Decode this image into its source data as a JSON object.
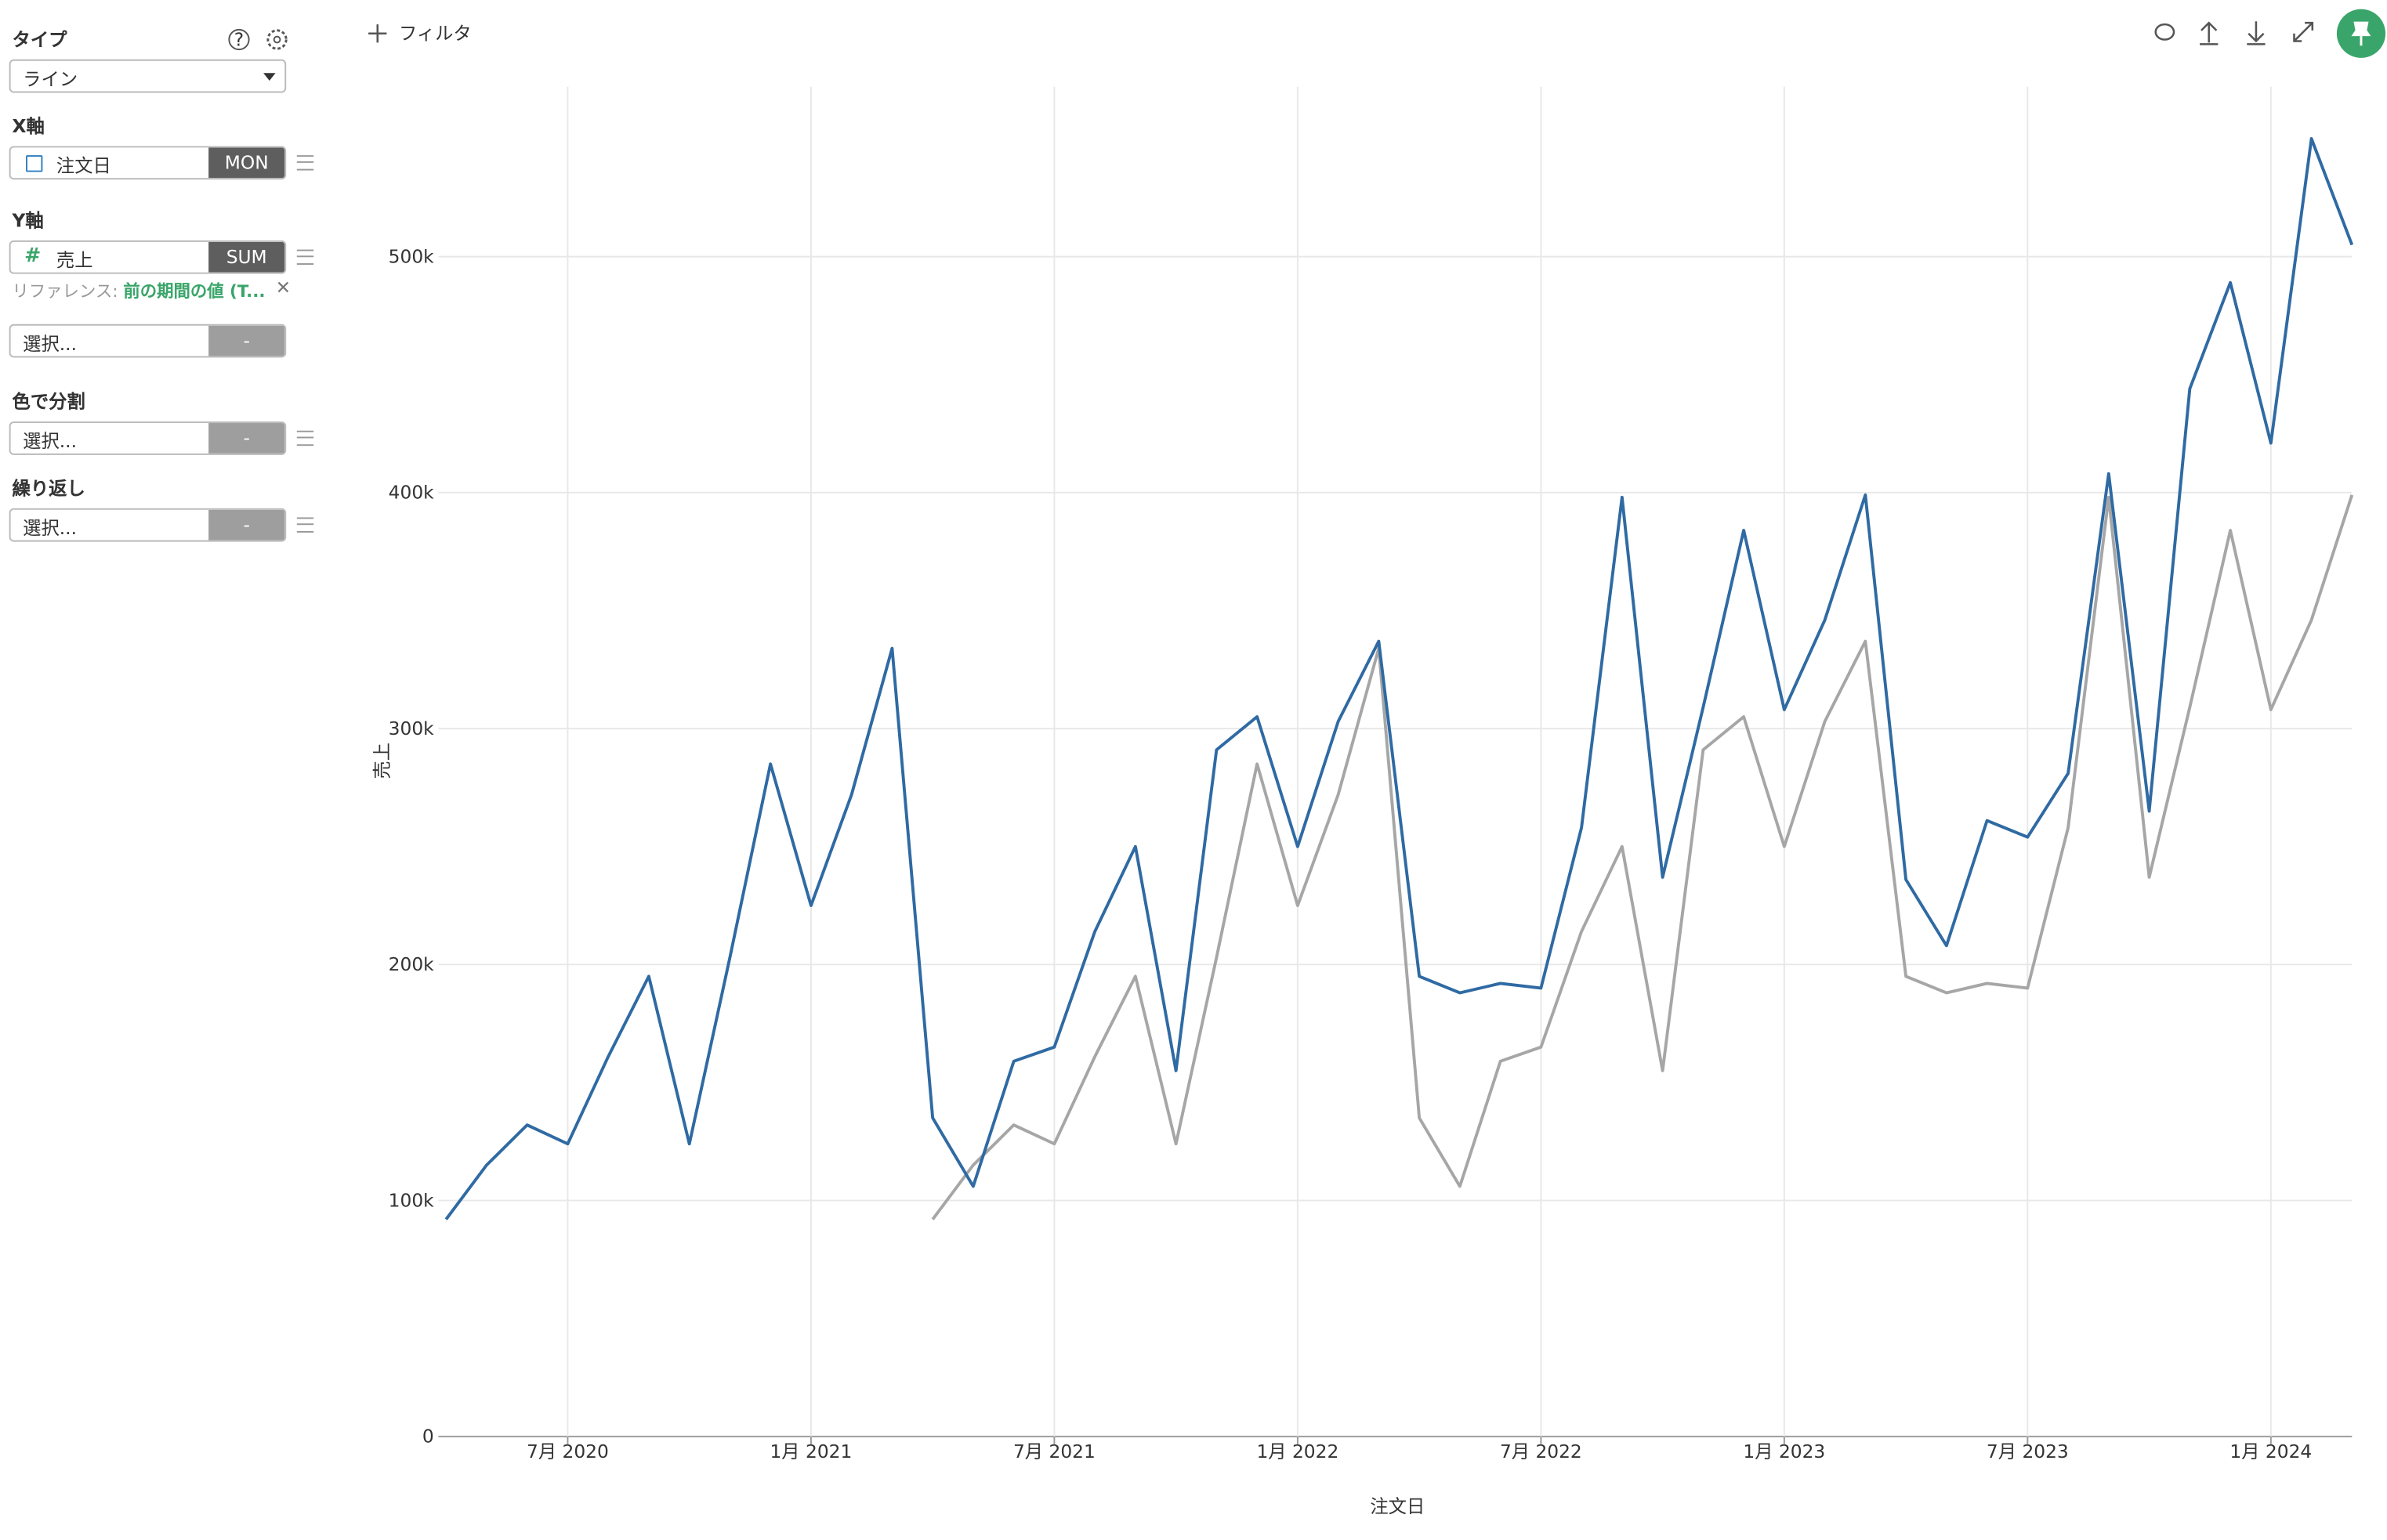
{
  "toolbar": {
    "filter": "フィルタ"
  },
  "sidebar": {
    "type_label": "タイプ",
    "type_value": "ライン",
    "x_label": "X軸",
    "x_field": "注文日",
    "x_agg": "MON",
    "y_label": "Y軸",
    "y_field": "売上",
    "y_agg": "SUM",
    "reference_prefix": "リファレンス:",
    "reference_value": "前の期間の値 (T...",
    "extra_select": "選択...",
    "extra_agg": "-",
    "color_label": "色で分割",
    "color_select": "選択...",
    "color_agg": "-",
    "repeat_label": "繰り返し",
    "repeat_select": "選択...",
    "repeat_agg": "-"
  },
  "chart_data": {
    "type": "line",
    "x_label": "注文日",
    "y_label": "売上",
    "x": [
      "2020-04",
      "2020-05",
      "2020-06",
      "2020-07",
      "2020-08",
      "2020-09",
      "2020-10",
      "2020-11",
      "2020-12",
      "2021-01",
      "2021-02",
      "2021-03",
      "2021-04",
      "2021-05",
      "2021-06",
      "2021-07",
      "2021-08",
      "2021-09",
      "2021-10",
      "2021-11",
      "2021-12",
      "2022-01",
      "2022-02",
      "2022-03",
      "2022-04",
      "2022-05",
      "2022-06",
      "2022-07",
      "2022-08",
      "2022-09",
      "2022-10",
      "2022-11",
      "2022-12",
      "2023-01",
      "2023-02",
      "2023-03",
      "2023-04",
      "2023-05",
      "2023-06",
      "2023-07",
      "2023-08",
      "2023-09",
      "2023-10",
      "2023-11",
      "2023-12",
      "2024-01",
      "2024-02",
      "2024-03"
    ],
    "series": [
      {
        "color": "#2f6aa3",
        "values": [
          92000,
          115000,
          132000,
          124000,
          161000,
          195000,
          124000,
          203000,
          285000,
          225000,
          272000,
          334000,
          135000,
          106000,
          159000,
          165000,
          214000,
          250000,
          155000,
          291000,
          305000,
          250000,
          303000,
          337000,
          195000,
          188000,
          192000,
          190000,
          258000,
          398000,
          237000,
          309000,
          384000,
          308000,
          346000,
          399000,
          236000,
          208000,
          261000,
          254000,
          281000,
          408000,
          265000,
          444000,
          489000,
          421000,
          550000,
          505000
        ]
      },
      {
        "color": "#a6a6a6",
        "values": [
          null,
          null,
          null,
          null,
          null,
          null,
          null,
          null,
          null,
          null,
          null,
          null,
          92000,
          115000,
          132000,
          124000,
          161000,
          195000,
          124000,
          203000,
          285000,
          225000,
          272000,
          334000,
          135000,
          106000,
          159000,
          165000,
          214000,
          250000,
          155000,
          291000,
          305000,
          250000,
          303000,
          337000,
          195000,
          188000,
          192000,
          190000,
          258000,
          398000,
          237000,
          309000,
          384000,
          308000,
          346000,
          399000
        ]
      }
    ],
    "xlim": [
      "2020-04",
      "2024-03"
    ],
    "xticks": [
      {
        "value": "2020-07",
        "label": "7月 2020"
      },
      {
        "value": "2021-01",
        "label": "1月 2021"
      },
      {
        "value": "2021-07",
        "label": "7月 2021"
      },
      {
        "value": "2022-01",
        "label": "1月 2022"
      },
      {
        "value": "2022-07",
        "label": "7月 2022"
      },
      {
        "value": "2023-01",
        "label": "1月 2023"
      },
      {
        "value": "2023-07",
        "label": "7月 2023"
      },
      {
        "value": "2024-01",
        "label": "1月 2024"
      }
    ],
    "ylim": [
      0,
      572000
    ],
    "yticks": [
      0,
      {
        "value": 100000,
        "label": "100k"
      },
      {
        "value": 200000,
        "label": "200k"
      },
      {
        "value": 300000,
        "label": "300k"
      },
      {
        "value": 400000,
        "label": "400k"
      },
      {
        "value": 500000,
        "label": "500k"
      }
    ],
    "grid": true
  }
}
